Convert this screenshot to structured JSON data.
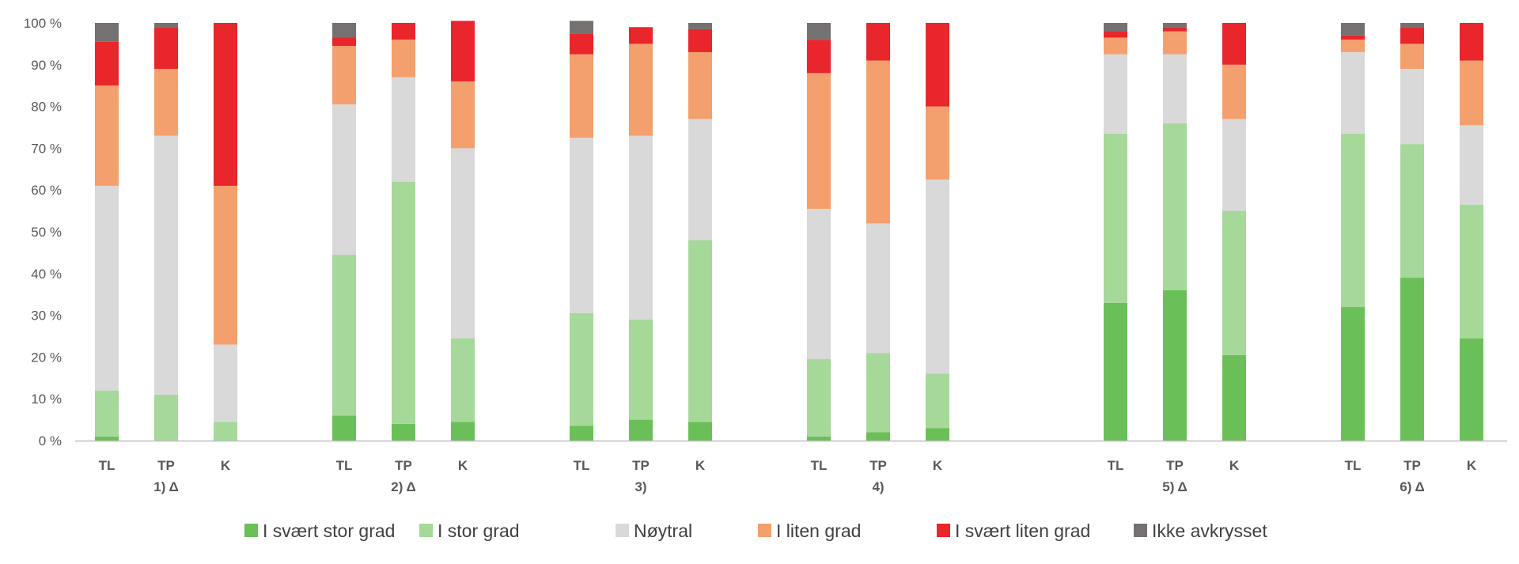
{
  "chart_data": {
    "type": "bar",
    "stacked": true,
    "percent": true,
    "ylim": [
      0,
      100
    ],
    "yticks": [
      "0 %",
      "10 %",
      "20 %",
      "30 %",
      "40 %",
      "50 %",
      "60 %",
      "70 %",
      "80 %",
      "90 %",
      "100 %"
    ],
    "grid": false,
    "legend_position": "bottom",
    "groups": [
      {
        "label": "1) Δ",
        "categories": [
          "TL",
          "TP",
          "K"
        ]
      },
      {
        "label": "2)  Δ",
        "categories": [
          "TL",
          "TP",
          "K"
        ]
      },
      {
        "label": "3)",
        "categories": [
          "TL",
          "TP",
          "K"
        ]
      },
      {
        "label": "4)",
        "categories": [
          "TL",
          "TP",
          "K"
        ]
      },
      {
        "label": "5) Δ",
        "categories": [
          "TL",
          "TP",
          "K"
        ]
      },
      {
        "label": "6) Δ",
        "categories": [
          "TL",
          "TP",
          "K"
        ]
      }
    ],
    "series": [
      {
        "name": "I svært stor grad",
        "color": "#6BBF59",
        "values": [
          1,
          0,
          0,
          6,
          4,
          4.5,
          3.5,
          5,
          4.5,
          1,
          2,
          3,
          33,
          36,
          20.5,
          32,
          39,
          24.5
        ]
      },
      {
        "name": "I stor grad",
        "color": "#A6D89A",
        "values": [
          11,
          11,
          4.5,
          38.5,
          58,
          20,
          27,
          24,
          43.5,
          18.5,
          19,
          13,
          40.5,
          40,
          34.5,
          41.5,
          32,
          32
        ]
      },
      {
        "name": "Nøytral",
        "color": "#D9D9D9",
        "values": [
          49,
          62,
          18.5,
          36,
          25,
          45.5,
          42,
          44,
          29,
          36,
          31,
          46.5,
          19,
          16.5,
          22,
          19.5,
          18,
          19
        ]
      },
      {
        "name": "I liten grad",
        "color": "#F4A06E",
        "values": [
          24,
          16,
          38,
          14,
          9,
          16,
          20,
          22,
          16,
          32.5,
          39,
          17.5,
          4,
          5.5,
          13,
          3,
          6,
          15.5
        ]
      },
      {
        "name": "I svært liten grad",
        "color": "#E8262B",
        "values": [
          10.5,
          10,
          39,
          2,
          4,
          14.5,
          5,
          4,
          5.5,
          8,
          9,
          20,
          1.5,
          1,
          10,
          1,
          4,
          9
        ]
      },
      {
        "name": "Ikke avkrysset",
        "color": "#767171",
        "values": [
          4.5,
          1,
          0,
          3.5,
          0,
          0,
          3,
          0,
          1.5,
          4,
          0,
          0,
          2,
          1,
          0,
          3,
          1,
          0
        ]
      }
    ]
  }
}
